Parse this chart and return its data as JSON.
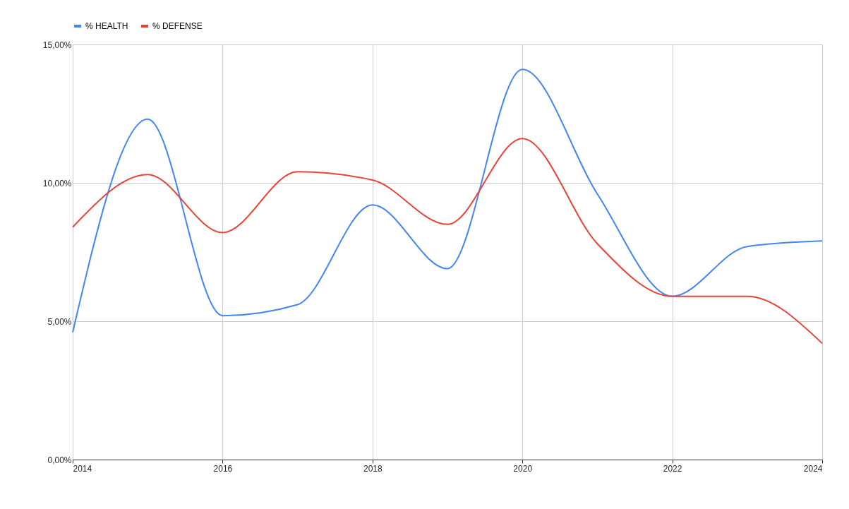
{
  "chart_data": {
    "type": "line",
    "x": [
      2014,
      2015,
      2016,
      2017,
      2018,
      2019,
      2020,
      2021,
      2022,
      2023,
      2024
    ],
    "series": [
      {
        "name": "% HEALTH",
        "color": "#4285f4",
        "values": [
          4.6,
          12.3,
          5.2,
          5.6,
          9.2,
          6.9,
          14.1,
          9.6,
          5.9,
          7.7,
          7.9
        ]
      },
      {
        "name": "% DEFENSE",
        "color": "#ea4335",
        "values": [
          8.4,
          10.3,
          8.2,
          10.4,
          10.1,
          8.5,
          11.6,
          7.8,
          5.9,
          5.9,
          4.2
        ]
      }
    ],
    "xlim": [
      2014,
      2024
    ],
    "xticks": [
      2014,
      2016,
      2018,
      2020,
      2022,
      2024
    ],
    "ylim": [
      0,
      15
    ],
    "yticks": [
      {
        "value": 0,
        "label": "0,00%"
      },
      {
        "value": 5,
        "label": "5,00%"
      },
      {
        "value": 10,
        "label": "10,00%"
      },
      {
        "value": 15,
        "label": "15,00%"
      }
    ],
    "grid": true,
    "legend": "top",
    "marker": "none",
    "line_style": "solid"
  }
}
